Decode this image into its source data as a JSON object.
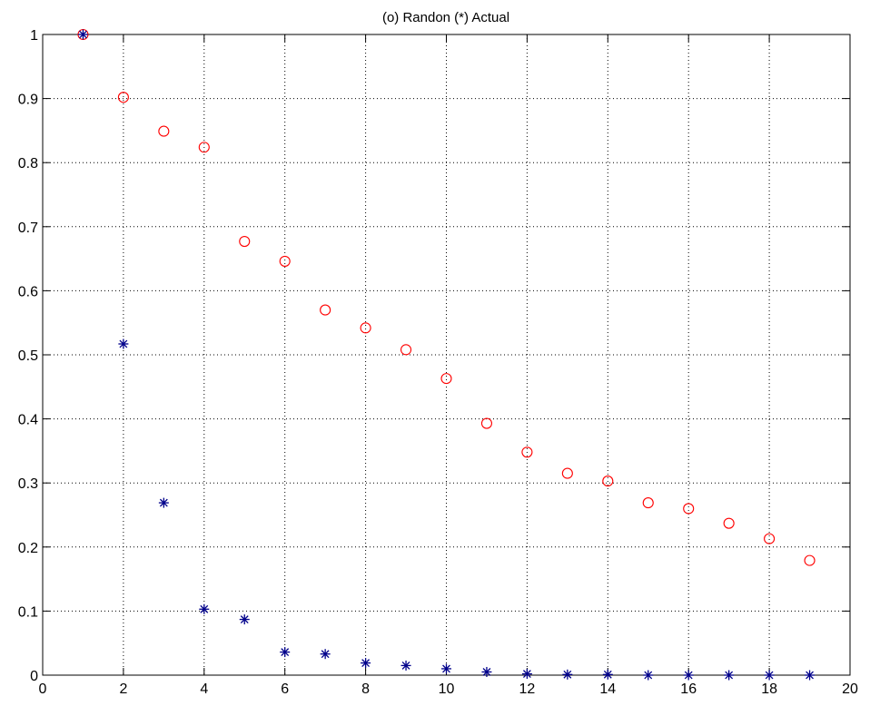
{
  "chart_data": {
    "type": "scatter",
    "title": "(o) Randon  (*) Actual",
    "xlabel": "",
    "ylabel": "",
    "xlim": [
      0,
      20
    ],
    "ylim": [
      0,
      1
    ],
    "xticks": [
      0,
      2,
      4,
      6,
      8,
      10,
      12,
      14,
      16,
      18,
      20
    ],
    "yticks": [
      0,
      0.1,
      0.2,
      0.3,
      0.4,
      0.5,
      0.6,
      0.7,
      0.8,
      0.9,
      1
    ],
    "grid": true,
    "series": [
      {
        "marker": "circle",
        "color": "#ff0000",
        "x": [
          1,
          2,
          3,
          4,
          5,
          6,
          7,
          8,
          9,
          10,
          11,
          12,
          13,
          14,
          15,
          16,
          17,
          18,
          19
        ],
        "y": [
          1.0,
          0.902,
          0.849,
          0.824,
          0.677,
          0.646,
          0.57,
          0.542,
          0.508,
          0.463,
          0.393,
          0.348,
          0.315,
          0.303,
          0.269,
          0.26,
          0.237,
          0.213,
          0.179
        ]
      },
      {
        "marker": "asterisk",
        "color": "#00008b",
        "x": [
          1,
          2,
          3,
          4,
          5,
          6,
          7,
          8,
          9,
          10,
          11,
          12,
          13,
          14,
          15,
          16,
          17,
          18,
          19
        ],
        "y": [
          1.0,
          0.517,
          0.269,
          0.103,
          0.087,
          0.036,
          0.033,
          0.019,
          0.015,
          0.01,
          0.005,
          0.002,
          0.001,
          0.001,
          0.0,
          0.0,
          0.0,
          0.0,
          0.0
        ]
      }
    ]
  }
}
